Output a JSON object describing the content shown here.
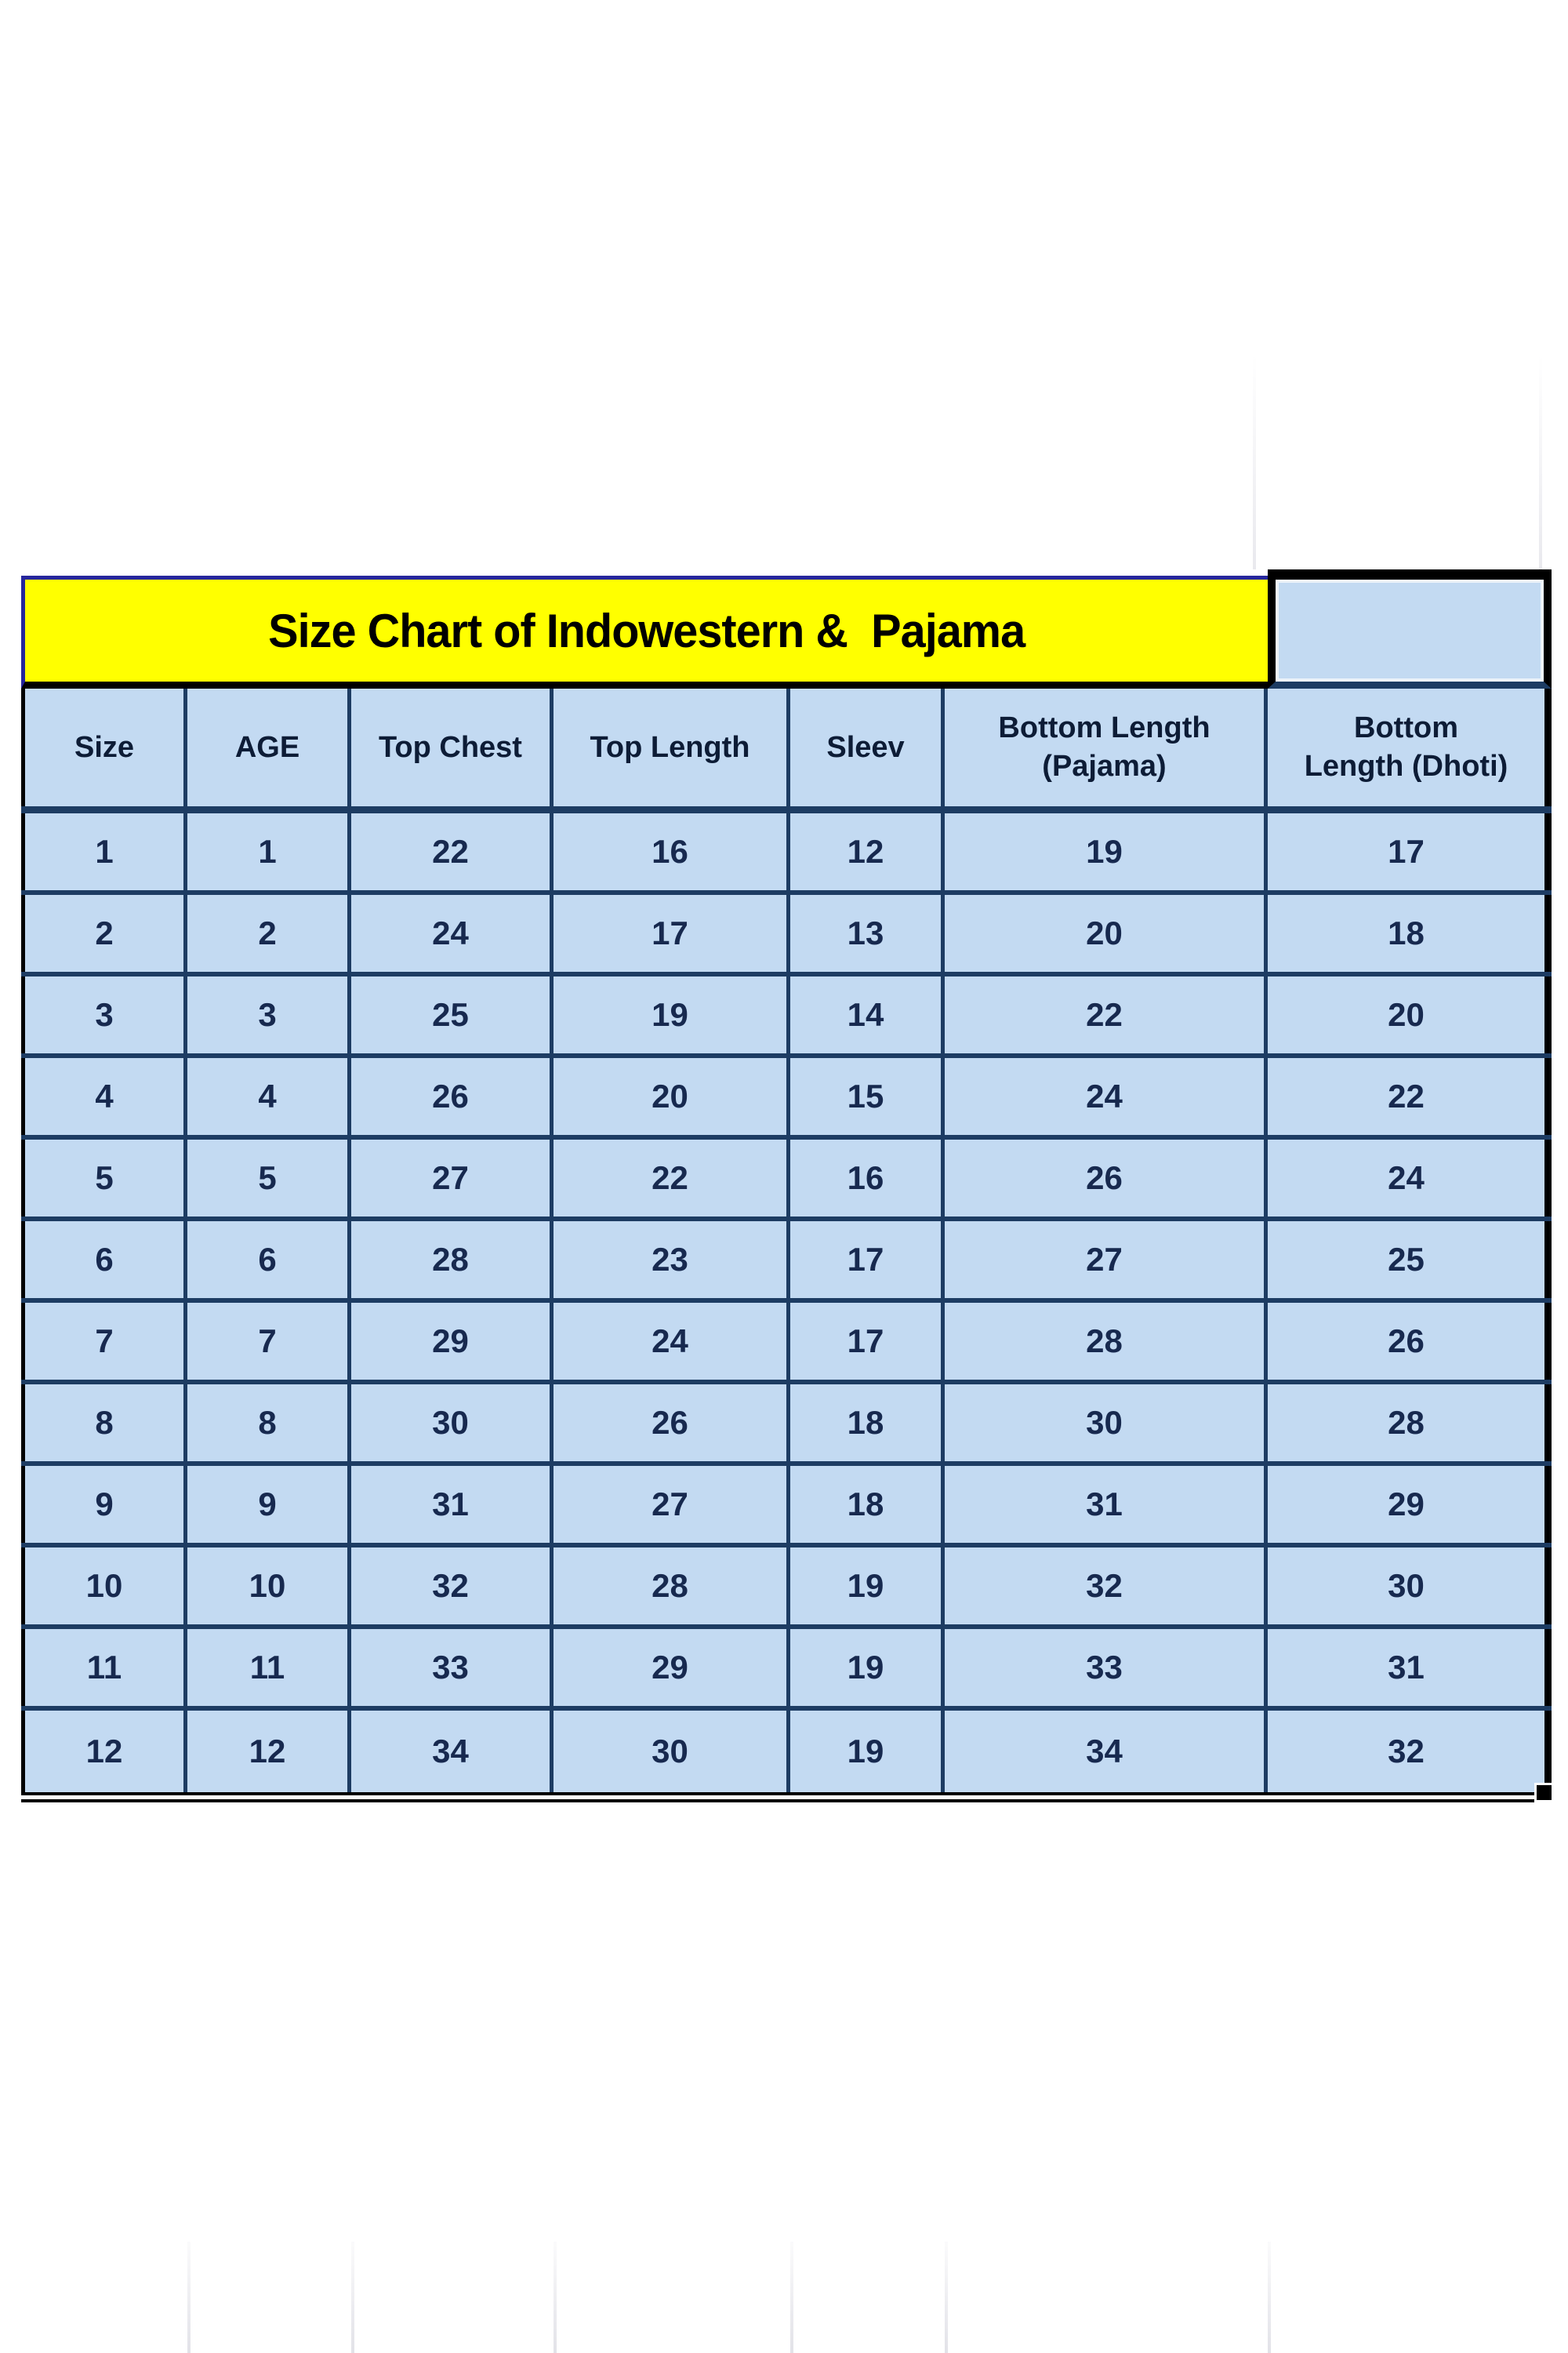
{
  "chart_data": {
    "type": "table",
    "title": "Size Chart of Indowestern &  Pajama",
    "columns": [
      "Size",
      "AGE",
      "Top Chest",
      "Top Length",
      "Sleev",
      "Bottom Length (Pajama)",
      "Bottom Length (Dhoti)"
    ],
    "column_display_lines": [
      [
        "Size"
      ],
      [
        "AGE"
      ],
      [
        "Top Chest"
      ],
      [
        "Top Length"
      ],
      [
        "Sleev"
      ],
      [
        "Bottom Length",
        "(Pajama)"
      ],
      [
        "Bottom",
        "Length (Dhoti)"
      ]
    ],
    "rows": [
      [
        1,
        1,
        22,
        16,
        12,
        19,
        17
      ],
      [
        2,
        2,
        24,
        17,
        13,
        20,
        18
      ],
      [
        3,
        3,
        25,
        19,
        14,
        22,
        20
      ],
      [
        4,
        4,
        26,
        20,
        15,
        24,
        22
      ],
      [
        5,
        5,
        27,
        22,
        16,
        26,
        24
      ],
      [
        6,
        6,
        28,
        23,
        17,
        27,
        25
      ],
      [
        7,
        7,
        29,
        24,
        17,
        28,
        26
      ],
      [
        8,
        8,
        30,
        26,
        18,
        30,
        28
      ],
      [
        9,
        9,
        31,
        27,
        18,
        31,
        29
      ],
      [
        10,
        10,
        32,
        28,
        19,
        32,
        30
      ],
      [
        11,
        11,
        33,
        29,
        19,
        33,
        31
      ],
      [
        12,
        12,
        34,
        30,
        19,
        34,
        32
      ]
    ],
    "legend_position": "none",
    "grid": "on"
  },
  "colors": {
    "banner_fill": "#FFFF00",
    "banner_border": "#26269C",
    "cell_fill": "#C3DAF2",
    "grid_border": "#1D3C63",
    "outer_border": "#000000",
    "title_text": "#000000",
    "header_text": "#0D1C36",
    "value_text": "#17294F",
    "faint_gridline": "#E2E2E8"
  }
}
